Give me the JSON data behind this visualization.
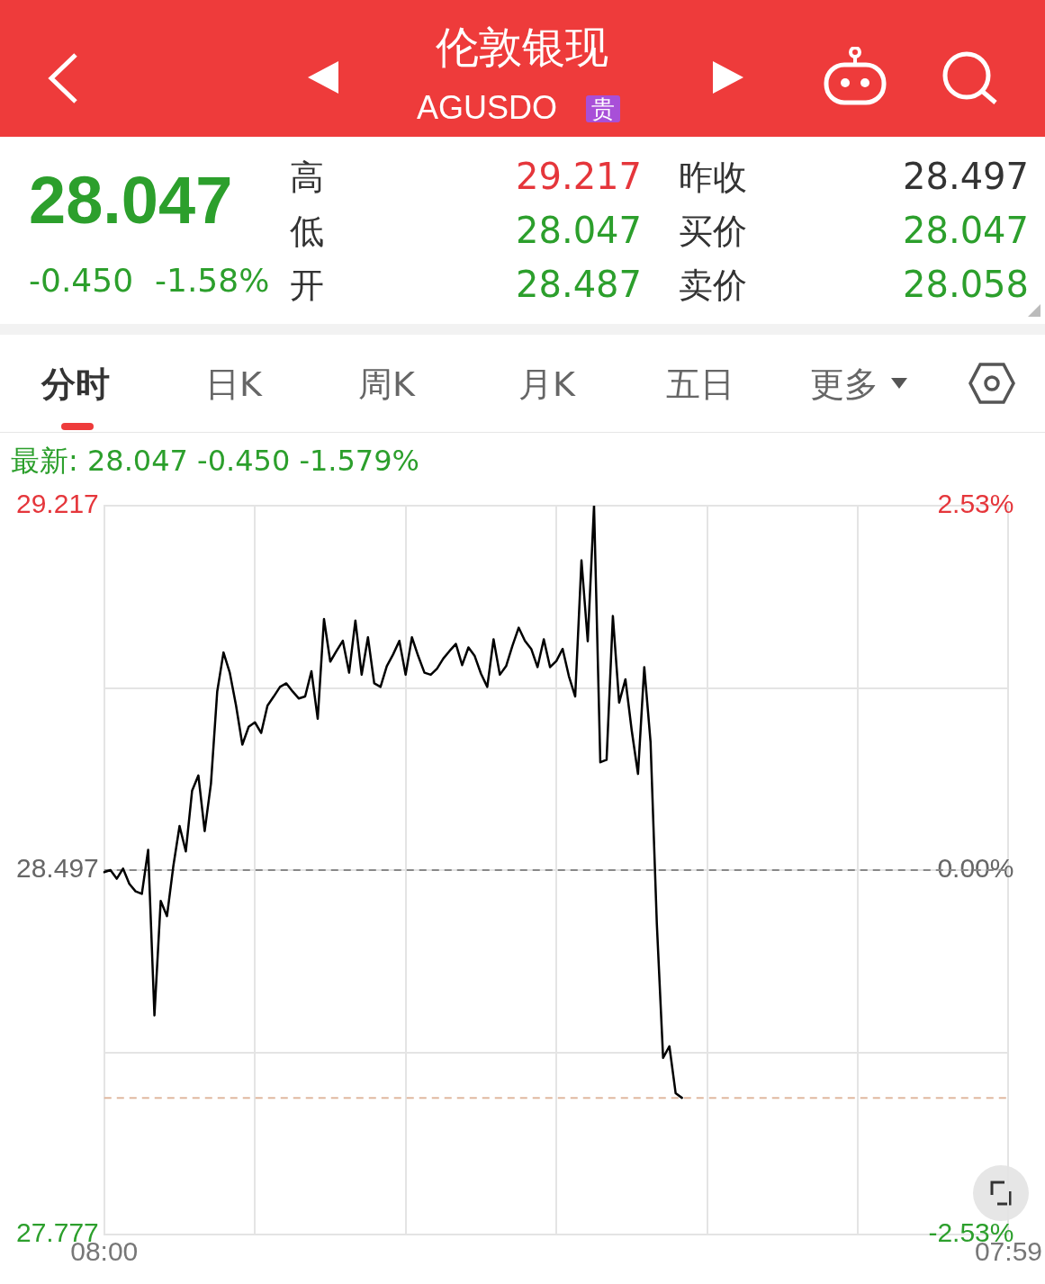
{
  "chart_data": {
    "type": "line",
    "title": "伦敦银现",
    "subtitle": "AGUSDO",
    "annotations": [
      "贵",
      "28.047",
      "-0.450",
      "-1.58%",
      "高",
      "29.217",
      "昨收",
      "28.497",
      "低",
      "28.047",
      "买价",
      "28.047",
      "开",
      "28.487",
      "卖价",
      "28.058",
      "分时",
      "日K",
      "周K",
      "月K",
      "五日",
      "更多",
      "最新: 28.047  -0.450  -1.579%"
    ],
    "categories": [
      "08:00",
      null,
      null,
      null,
      null,
      null,
      null,
      null,
      null,
      null,
      null,
      null,
      null,
      null,
      null,
      null,
      null,
      null,
      null,
      null,
      null,
      null,
      null,
      null,
      null,
      null,
      null,
      null,
      null,
      null,
      null,
      null,
      null,
      null,
      null,
      null,
      null,
      null,
      null,
      null,
      null,
      null,
      null,
      null,
      null,
      null,
      null,
      null,
      null,
      null,
      null,
      null,
      null,
      null,
      null,
      null,
      null,
      null,
      null,
      null,
      null,
      null,
      null,
      null,
      null,
      null,
      null,
      null,
      null,
      null,
      null,
      null,
      null,
      null,
      null,
      null,
      null,
      null,
      null,
      null,
      null,
      null,
      null,
      null,
      null,
      null,
      null,
      null,
      null,
      null,
      null,
      null,
      null,
      null,
      null,
      null,
      null,
      null,
      null,
      null,
      null,
      null,
      null,
      null,
      null,
      null,
      null,
      null,
      null,
      null,
      null,
      null,
      null,
      null,
      null,
      null,
      null,
      null,
      null,
      null,
      null,
      null,
      null,
      null,
      null,
      null,
      null,
      null,
      null,
      null,
      null,
      null,
      null,
      null,
      null,
      null,
      null,
      null,
      null,
      null,
      null,
      null,
      null,
      null,
      "07:59"
    ],
    "series": [
      {
        "color": "#000000",
        "values": [
          28.493,
          28.497,
          28.48,
          28.5,
          28.47,
          28.455,
          28.45,
          28.537,
          28.21,
          28.436,
          28.406,
          28.504,
          28.584,
          28.534,
          28.654,
          28.684,
          28.574,
          28.668,
          28.85,
          28.927,
          28.887,
          28.822,
          28.745,
          28.78,
          28.789,
          28.768,
          28.822,
          28.84,
          28.859,
          28.866,
          28.85,
          28.836,
          28.84,
          28.89,
          28.796,
          28.993,
          28.909,
          28.93,
          28.95,
          28.887,
          28.99,
          28.883,
          28.957,
          28.866,
          28.859,
          28.9,
          28.923,
          28.95,
          28.883,
          28.957,
          28.92,
          28.887,
          28.883,
          28.895,
          28.915,
          28.93,
          28.944,
          28.902,
          28.937,
          28.92,
          28.885,
          28.859,
          28.953,
          28.883,
          28.9,
          28.94,
          28.976,
          28.95,
          28.934,
          28.898,
          28.953,
          28.898,
          28.91,
          28.934,
          28.88,
          28.84,
          29.109,
          28.949,
          29.217,
          28.71,
          28.715,
          28.999,
          28.828,
          28.874,
          28.773,
          28.687,
          28.898,
          28.75,
          28.391,
          28.126,
          28.149,
          28.056,
          28.047,
          null,
          null,
          null,
          null,
          null,
          null,
          null,
          null,
          null,
          null,
          null,
          null,
          null,
          null,
          null,
          null,
          null,
          null,
          null,
          null,
          null,
          null,
          null,
          null,
          null,
          null,
          null,
          null,
          null,
          null,
          null,
          null,
          null,
          null,
          null,
          null,
          null,
          null,
          null,
          null,
          null,
          null,
          null,
          null,
          null,
          null,
          null,
          null,
          null,
          null,
          null,
          null
        ]
      }
    ],
    "ylim": [
      27.777,
      29.217
    ],
    "yticks": [
      27.777,
      {
        "value": 28.137,
        "label": null
      },
      28.497,
      {
        "value": 28.857,
        "label": null
      },
      29.217
    ],
    "y2lim": [
      -2.53,
      2.53
    ],
    "y2ticks": [
      {
        "value": -2.53,
        "label": "-2.53%"
      },
      {
        "value": 0,
        "label": "0.00%"
      },
      {
        "value": 2.53,
        "label": "2.53%"
      }
    ],
    "ref_lines": [
      {
        "axis": "y",
        "value": 28.497,
        "color": "#888888",
        "line_style": "dashed"
      },
      {
        "axis": "y",
        "value": 28.047,
        "color": "#e0b8a0",
        "line_style": "dashed"
      }
    ],
    "grid": true,
    "legend": false,
    "marker": "none"
  }
}
